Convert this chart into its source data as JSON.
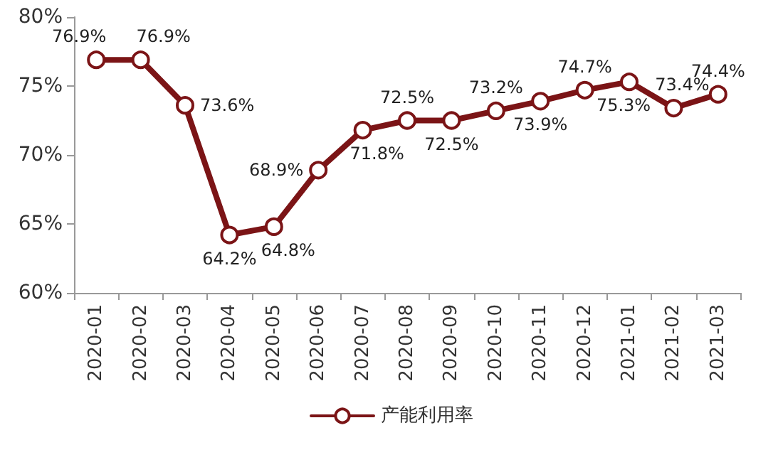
{
  "chart_data": {
    "type": "line",
    "categories": [
      "2020-01",
      "2020-02",
      "2020-03",
      "2020-04",
      "2020-05",
      "2020-06",
      "2020-07",
      "2020-08",
      "2020-09",
      "2020-10",
      "2020-11",
      "2020-12",
      "2021-01",
      "2021-02",
      "2021-03"
    ],
    "series": [
      {
        "name": "产能利用率",
        "color": "#7b1416",
        "values": [
          76.9,
          76.9,
          73.6,
          64.2,
          64.8,
          68.9,
          71.8,
          72.5,
          72.5,
          73.2,
          73.9,
          74.7,
          75.3,
          73.4,
          74.4
        ],
        "value_labels": [
          "76.9%",
          "76.9%",
          "73.6%",
          "64.2%",
          "64.8%",
          "68.9%",
          "71.8%",
          "72.5%",
          "72.5%",
          "73.2%",
          "73.9%",
          "74.7%",
          "75.3%",
          "73.4%",
          "74.4%"
        ]
      }
    ],
    "ylim": [
      60,
      80
    ],
    "yticks": [
      {
        "value": 60,
        "label": "60%"
      },
      {
        "value": 65,
        "label": "65%"
      },
      {
        "value": 70,
        "label": "70%"
      },
      {
        "value": 75,
        "label": "75%"
      },
      {
        "value": 80,
        "label": "80%"
      }
    ],
    "grid": false,
    "legend": "bottom",
    "marker": "circle",
    "line_style": "solid"
  }
}
